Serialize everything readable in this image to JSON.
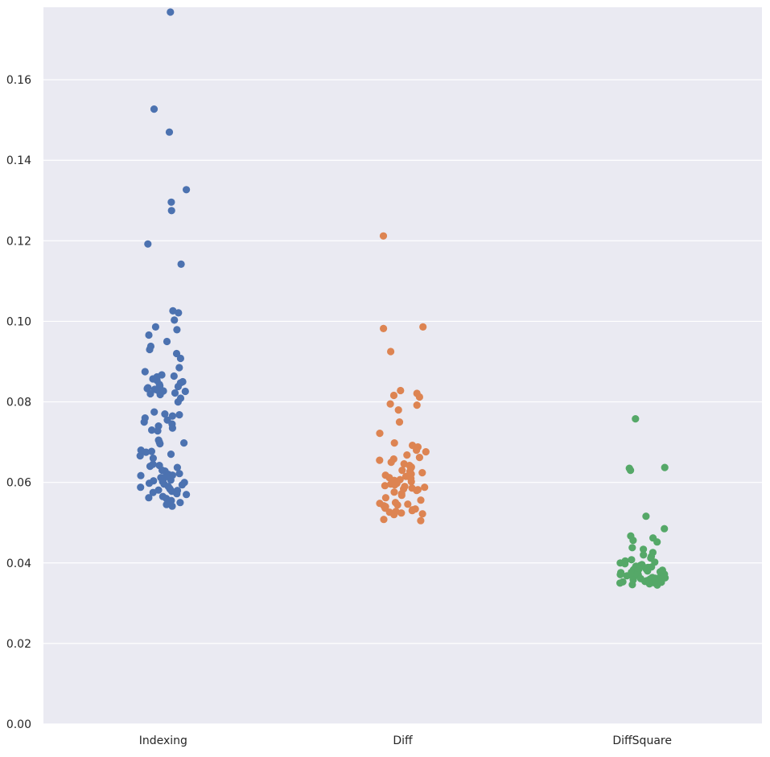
{
  "chart_data": {
    "type": "scatter",
    "subtype": "stripplot",
    "title": "",
    "xlabel": "",
    "ylabel": "",
    "ylim": [
      0,
      0.178
    ],
    "y_ticks": [
      "0.00",
      "0.02",
      "0.04",
      "0.06",
      "0.08",
      "0.10",
      "0.12",
      "0.14",
      "0.16"
    ],
    "y_tick_values": [
      0,
      0.02,
      0.04,
      0.06,
      0.08,
      0.1,
      0.12,
      0.14,
      0.16
    ],
    "grid": "horizontal",
    "background": "#EAEAF2",
    "categories": [
      "Indexing",
      "Diff",
      "DiffSquare"
    ],
    "series": [
      {
        "category": "Indexing",
        "color": "#4C72B0",
        "values": [
          0.1768,
          0.1527,
          0.147,
          0.1327,
          0.1275,
          0.1296,
          0.1192,
          0.1142,
          0.1026,
          0.1021,
          0.1003,
          0.0986,
          0.0979,
          0.0966,
          0.095,
          0.0938,
          0.093,
          0.092,
          0.0908,
          0.0885,
          0.0875,
          0.0867,
          0.0864,
          0.0862,
          0.0857,
          0.0853,
          0.085,
          0.0847,
          0.0843,
          0.084,
          0.0838,
          0.0835,
          0.0833,
          0.0831,
          0.0829,
          0.0827,
          0.0826,
          0.0825,
          0.0822,
          0.082,
          0.0818,
          0.0809,
          0.08,
          0.0775,
          0.077,
          0.0768,
          0.0765,
          0.076,
          0.0755,
          0.075,
          0.0745,
          0.074,
          0.0735,
          0.073,
          0.0728,
          0.0705,
          0.07,
          0.0698,
          0.0696,
          0.068,
          0.0677,
          0.0675,
          0.067,
          0.0666,
          0.066,
          0.0645,
          0.0642,
          0.064,
          0.0637,
          0.063,
          0.0628,
          0.0622,
          0.062,
          0.0618,
          0.0617,
          0.0615,
          0.0612,
          0.061,
          0.0606,
          0.0604,
          0.0602,
          0.06,
          0.0598,
          0.0596,
          0.0594,
          0.059,
          0.0588,
          0.0585,
          0.0583,
          0.0581,
          0.058,
          0.0578,
          0.0575,
          0.0572,
          0.057,
          0.0565,
          0.0562,
          0.056,
          0.0555,
          0.055,
          0.0545,
          0.0541
        ]
      },
      {
        "category": "Diff",
        "color": "#DD8452",
        "values": [
          0.1212,
          0.0986,
          0.0982,
          0.0925,
          0.0828,
          0.0821,
          0.0816,
          0.0812,
          0.0795,
          0.0792,
          0.078,
          0.075,
          0.0722,
          0.0698,
          0.0692,
          0.0688,
          0.068,
          0.0676,
          0.0668,
          0.0662,
          0.0658,
          0.0655,
          0.065,
          0.0646,
          0.0642,
          0.0638,
          0.0635,
          0.063,
          0.0627,
          0.0624,
          0.0621,
          0.0618,
          0.0615,
          0.0612,
          0.061,
          0.0607,
          0.0605,
          0.0602,
          0.06,
          0.0598,
          0.0596,
          0.0594,
          0.0592,
          0.059,
          0.0588,
          0.0586,
          0.0584,
          0.0582,
          0.058,
          0.0576,
          0.0572,
          0.0568,
          0.0562,
          0.0556,
          0.055,
          0.0548,
          0.0546,
          0.0544,
          0.0542,
          0.054,
          0.0538,
          0.0536,
          0.0534,
          0.0532,
          0.053,
          0.0528,
          0.0526,
          0.0524,
          0.0522,
          0.052,
          0.0508,
          0.0505
        ]
      },
      {
        "category": "DiffSquare",
        "color": "#55A868",
        "values": [
          0.0758,
          0.0637,
          0.0635,
          0.063,
          0.0516,
          0.0485,
          0.0467,
          0.0462,
          0.0456,
          0.0452,
          0.0438,
          0.0434,
          0.0426,
          0.042,
          0.0416,
          0.0412,
          0.0408,
          0.0405,
          0.0402,
          0.04,
          0.0398,
          0.0396,
          0.0394,
          0.0392,
          0.039,
          0.0389,
          0.0388,
          0.0387,
          0.0386,
          0.0385,
          0.0384,
          0.0383,
          0.0382,
          0.0381,
          0.038,
          0.0379,
          0.0378,
          0.0377,
          0.0376,
          0.0375,
          0.0374,
          0.0373,
          0.0372,
          0.0371,
          0.037,
          0.0369,
          0.0368,
          0.0367,
          0.0366,
          0.0365,
          0.0364,
          0.0363,
          0.0362,
          0.0361,
          0.036,
          0.0359,
          0.0358,
          0.0357,
          0.0356,
          0.0355,
          0.0354,
          0.0353,
          0.0352,
          0.0351,
          0.035,
          0.0348,
          0.0346,
          0.0345
        ]
      }
    ]
  }
}
